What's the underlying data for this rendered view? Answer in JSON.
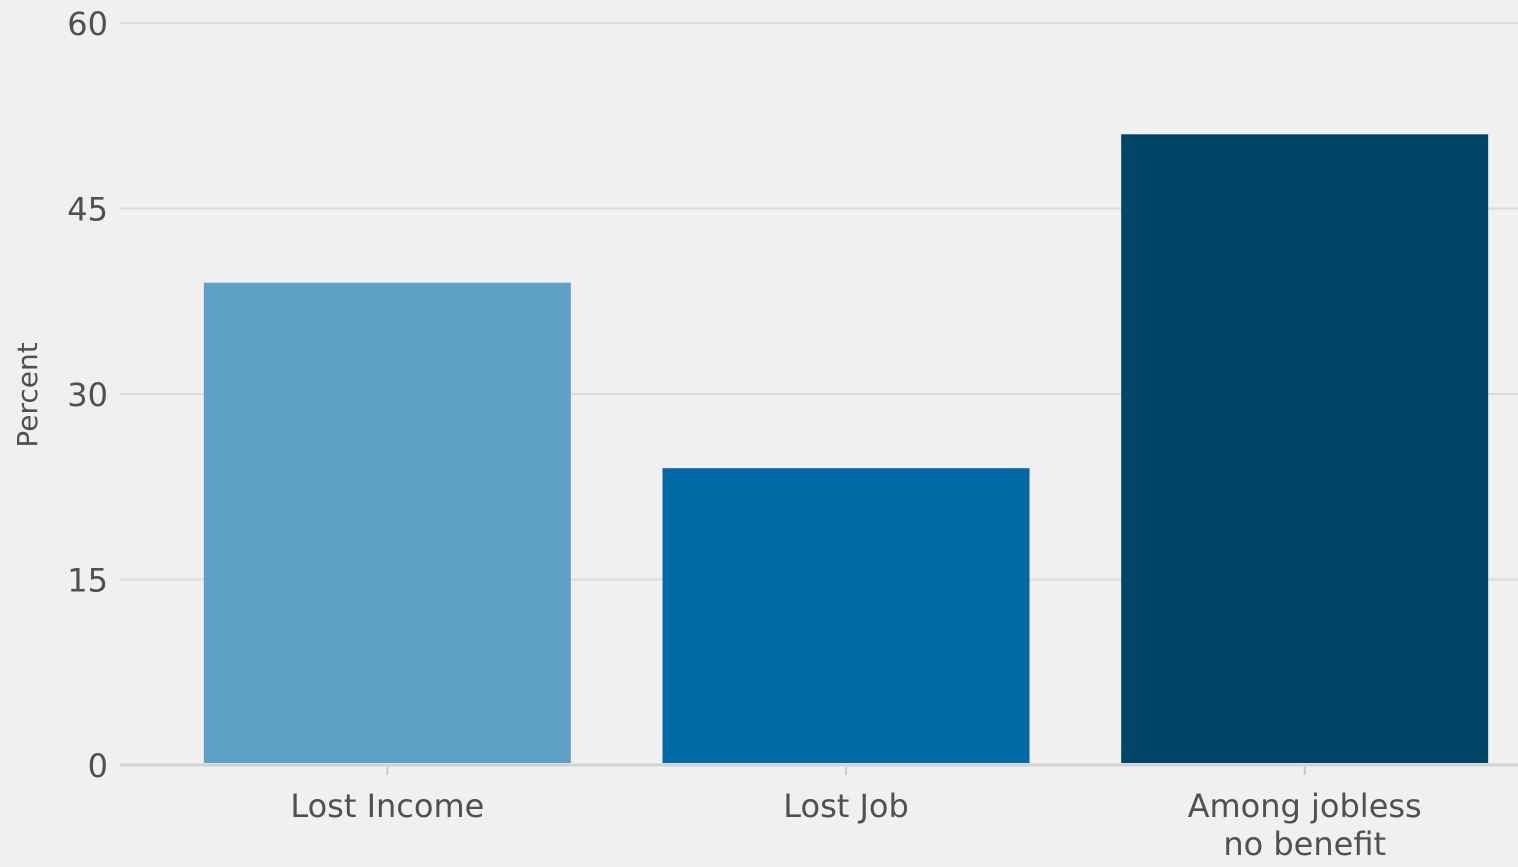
{
  "chart_data": {
    "type": "bar",
    "title": "",
    "xlabel": "",
    "ylabel": "Percent",
    "ylim": [
      0,
      60
    ],
    "yticks": [
      0,
      15,
      30,
      45,
      60
    ],
    "grid": true,
    "legend": "none",
    "categories": [
      [
        "Lost Income"
      ],
      [
        "Lost Job"
      ],
      [
        "Among jobless",
        "no benefit"
      ]
    ],
    "values": [
      39,
      24,
      51
    ],
    "colors": [
      "#5ea0c6",
      "#0069a6",
      "#004668"
    ]
  }
}
